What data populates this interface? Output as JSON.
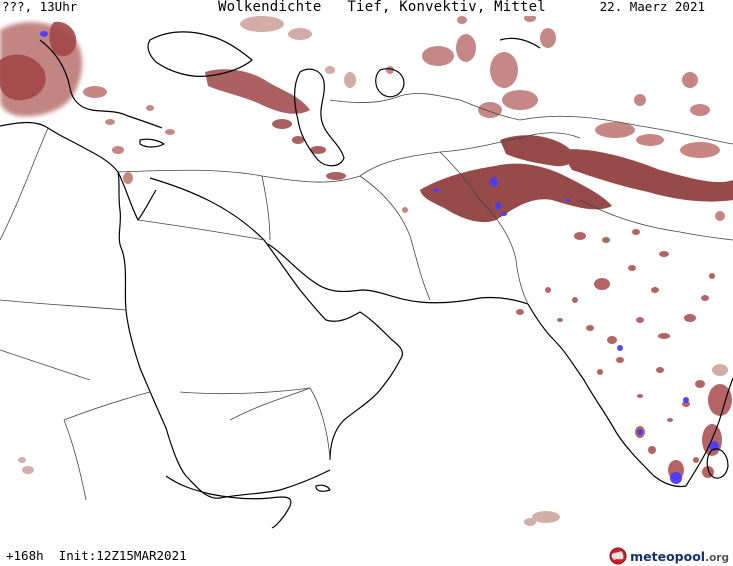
{
  "header": {
    "left": "???, 13Uhr",
    "title": "Wolkendichte   Tief, Konvektiv, Mittel",
    "date": "22. Maerz 2021"
  },
  "footer": {
    "run": "+168h  Init:12Z15MAR2021"
  },
  "logo": {
    "brand": "meteopool",
    "tld": ".org"
  },
  "colors": {
    "cloud_dark": "#8b3a3a",
    "cloud_mid": "#a24848",
    "cloud_light": "#c79a94",
    "convective": "#4a3cff",
    "coastline": "#000000",
    "border": "#333333"
  }
}
